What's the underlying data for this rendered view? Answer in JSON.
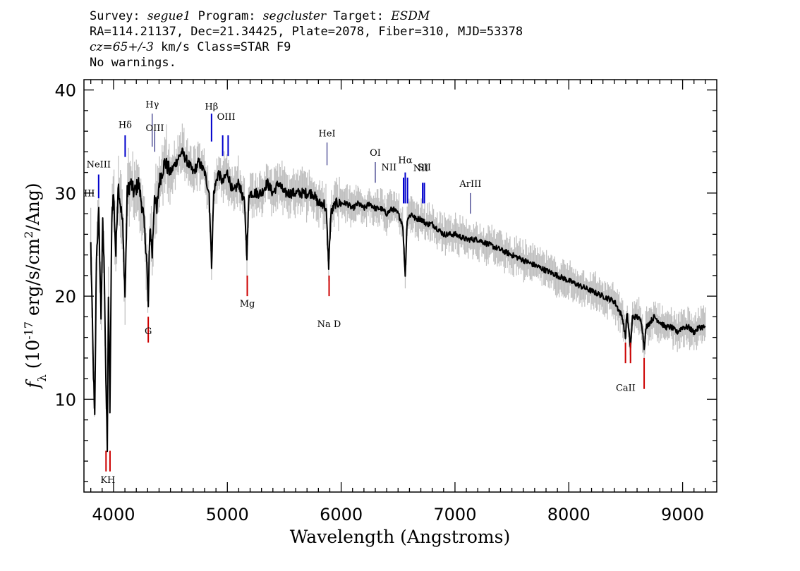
{
  "header": {
    "survey_label": "Survey: ",
    "survey": "segue1",
    "program_label": " Program: ",
    "program": "segcluster",
    "target_label": " Target: ",
    "target": "ESDM",
    "line2": "RA=114.21137, Dec=21.34425, Plate=2078, Fiber=310, MJD=53378",
    "cz_value": "cz=65+/-3",
    "line3_rest": " km/s Class=STAR F9",
    "line4": "No warnings."
  },
  "chart_data": {
    "type": "line",
    "title": "",
    "xlabel": "Wavelength (Angstroms)",
    "ylabel": "f_λ (10^-17 erg/s/cm^2/Ang)",
    "xlim": [
      3740,
      9300
    ],
    "ylim": [
      1.0,
      41.0
    ],
    "x_ticks": [
      4000,
      5000,
      6000,
      7000,
      8000,
      9000
    ],
    "y_ticks": [
      10,
      20,
      30,
      40
    ],
    "grid": false,
    "colors": {
      "flux": "#000000",
      "error_band": "#bfbfbf",
      "emission": "#0000cc",
      "absorption": "#cc0000",
      "sky": "#000066"
    },
    "series": [
      {
        "points": [
          [
            3800,
            25
          ],
          [
            3820,
            14
          ],
          [
            3835,
            8
          ],
          [
            3850,
            24
          ],
          [
            3870,
            28
          ],
          [
            3890,
            18
          ],
          [
            3905,
            27
          ],
          [
            3920,
            22
          ],
          [
            3933,
            12
          ],
          [
            3945,
            5
          ],
          [
            3955,
            20
          ],
          [
            3968,
            9
          ],
          [
            3985,
            28
          ],
          [
            4000,
            30
          ],
          [
            4020,
            24
          ],
          [
            4040,
            31
          ],
          [
            4060,
            29
          ],
          [
            4080,
            27
          ],
          [
            4101,
            20
          ],
          [
            4120,
            30
          ],
          [
            4150,
            31
          ],
          [
            4180,
            30
          ],
          [
            4220,
            31
          ],
          [
            4260,
            28
          ],
          [
            4290,
            24
          ],
          [
            4305,
            19
          ],
          [
            4320,
            27
          ],
          [
            4340,
            24
          ],
          [
            4360,
            30
          ],
          [
            4380,
            28
          ],
          [
            4400,
            31
          ],
          [
            4450,
            33
          ],
          [
            4500,
            32
          ],
          [
            4550,
            33
          ],
          [
            4600,
            34
          ],
          [
            4650,
            33
          ],
          [
            4700,
            32
          ],
          [
            4750,
            33
          ],
          [
            4800,
            32
          ],
          [
            4840,
            30
          ],
          [
            4861,
            23
          ],
          [
            4880,
            30
          ],
          [
            4920,
            32
          ],
          [
            4960,
            31
          ],
          [
            5000,
            32
          ],
          [
            5050,
            30
          ],
          [
            5100,
            31
          ],
          [
            5150,
            29
          ],
          [
            5172,
            24
          ],
          [
            5190,
            30
          ],
          [
            5250,
            30
          ],
          [
            5300,
            30
          ],
          [
            5350,
            31
          ],
          [
            5400,
            30
          ],
          [
            5450,
            31
          ],
          [
            5500,
            30
          ],
          [
            5550,
            30
          ],
          [
            5600,
            30
          ],
          [
            5650,
            30
          ],
          [
            5700,
            30
          ],
          [
            5750,
            30
          ],
          [
            5800,
            29
          ],
          [
            5850,
            29
          ],
          [
            5870,
            28
          ],
          [
            5890,
            23
          ],
          [
            5910,
            28
          ],
          [
            5950,
            29
          ],
          [
            6000,
            29
          ],
          [
            6050,
            29
          ],
          [
            6100,
            28.5
          ],
          [
            6150,
            29
          ],
          [
            6200,
            28.5
          ],
          [
            6250,
            29
          ],
          [
            6300,
            28.5
          ],
          [
            6350,
            28.5
          ],
          [
            6400,
            28
          ],
          [
            6450,
            28.5
          ],
          [
            6500,
            28
          ],
          [
            6540,
            27
          ],
          [
            6563,
            22
          ],
          [
            6580,
            27.5
          ],
          [
            6620,
            28
          ],
          [
            6650,
            27.5
          ],
          [
            6700,
            27.5
          ],
          [
            6750,
            27
          ],
          [
            6800,
            27
          ],
          [
            6900,
            26
          ],
          [
            7000,
            26
          ],
          [
            7100,
            25.5
          ],
          [
            7200,
            25.5
          ],
          [
            7300,
            25
          ],
          [
            7400,
            24.5
          ],
          [
            7500,
            24
          ],
          [
            7600,
            23.5
          ],
          [
            7700,
            23
          ],
          [
            7800,
            22.5
          ],
          [
            7900,
            22
          ],
          [
            8000,
            21.5
          ],
          [
            8100,
            21
          ],
          [
            8200,
            20.5
          ],
          [
            8300,
            20
          ],
          [
            8400,
            19.5
          ],
          [
            8470,
            18
          ],
          [
            8498,
            16
          ],
          [
            8510,
            18.5
          ],
          [
            8542,
            15
          ],
          [
            8560,
            18
          ],
          [
            8600,
            18
          ],
          [
            8640,
            17.5
          ],
          [
            8662,
            15
          ],
          [
            8680,
            17
          ],
          [
            8750,
            18
          ],
          [
            8800,
            17.5
          ],
          [
            8850,
            17
          ],
          [
            8900,
            17
          ],
          [
            8950,
            16.5
          ],
          [
            9000,
            17
          ],
          [
            9050,
            17
          ],
          [
            9100,
            16.5
          ],
          [
            9150,
            17
          ],
          [
            9200,
            17
          ]
        ]
      }
    ],
    "line_markers": [
      {
        "label": "NeIII",
        "x": 3869,
        "kind": "emission"
      },
      {
        "label": "Hδ",
        "x": 4102,
        "kind": "emission"
      },
      {
        "label": "Hγ",
        "x": 4340,
        "kind": "sky"
      },
      {
        "label": "OIII",
        "x": 4363,
        "kind": "sky"
      },
      {
        "label": "Hβ",
        "x": 4861,
        "kind": "emission"
      },
      {
        "label": "OIII",
        "x": 4959,
        "kind": "emission"
      },
      {
        "label": "OIII",
        "x": 5007,
        "kind": "emission"
      },
      {
        "label": "HeI",
        "x": 5876,
        "kind": "sky"
      },
      {
        "label": "OI",
        "x": 6300,
        "kind": "sky"
      },
      {
        "label": "NII",
        "x": 6548,
        "kind": "emission"
      },
      {
        "label": "Hα",
        "x": 6563,
        "kind": "emission"
      },
      {
        "label": "NII",
        "x": 6583,
        "kind": "emission"
      },
      {
        "label": "SII",
        "x": 6716,
        "kind": "emission"
      },
      {
        "label": "SII",
        "x": 6731,
        "kind": "emission"
      },
      {
        "label": "ArIII",
        "x": 7136,
        "kind": "sky"
      },
      {
        "label": "K",
        "x": 3934,
        "kind": "absorption"
      },
      {
        "label": "H",
        "x": 3969,
        "kind": "absorption"
      },
      {
        "label": "G",
        "x": 4305,
        "kind": "absorption"
      },
      {
        "label": "Mg",
        "x": 5175,
        "kind": "absorption"
      },
      {
        "label": "Na D",
        "x": 5894,
        "kind": "absorption"
      },
      {
        "label": "CaII",
        "x": 8498,
        "kind": "absorption"
      },
      {
        "label": "CaII",
        "x": 8542,
        "kind": "absorption"
      },
      {
        "label": "CaII",
        "x": 8662,
        "kind": "absorption"
      }
    ],
    "marker_texts": [
      {
        "text": "NeIII",
        "x": 3869
      },
      {
        "text": "Hδ",
        "x": 4102
      },
      {
        "text": "Hγ",
        "x": 4340
      },
      {
        "text": "OIII",
        "x": 4363
      },
      {
        "text": "Hβ",
        "x": 4861
      },
      {
        "text": "OIII",
        "x": 4990
      },
      {
        "text": "HeI",
        "x": 5876
      },
      {
        "text": "OI",
        "x": 6300
      },
      {
        "text": "NII",
        "x": 6420
      },
      {
        "text": "Hα",
        "x": 6563
      },
      {
        "text": "NII",
        "x": 6700
      },
      {
        "text": "SII",
        "x": 6730
      },
      {
        "text": "ArIII",
        "x": 7136
      },
      {
        "text": "III",
        "x": 3740
      },
      {
        "text": "KH",
        "x": 3950
      },
      {
        "text": "G",
        "x": 4305
      },
      {
        "text": "Mg",
        "x": 5175
      },
      {
        "text": "Na D",
        "x": 5894
      },
      {
        "text": "CaII",
        "x": 8500
      }
    ]
  }
}
